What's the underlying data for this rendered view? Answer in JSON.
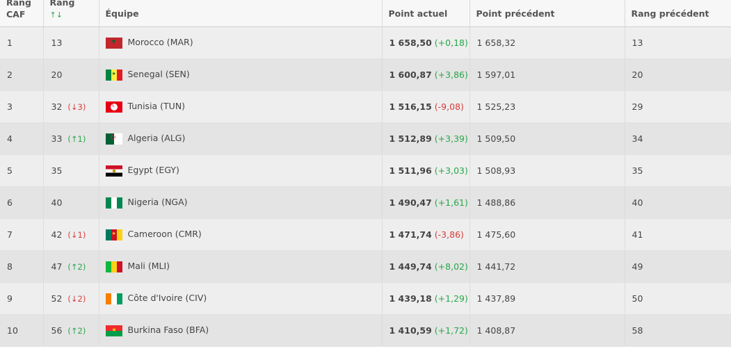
{
  "header": {
    "col_caf_line1": "Rang",
    "col_caf_line2": "CAF",
    "col_fifa_line1": "Rang",
    "col_fifa_sort": "↑↓",
    "col_team": "Équipe",
    "col_points": "Point actuel",
    "col_prev_points": "Point précédent",
    "col_prev_rank": "Rang précédent"
  },
  "rows": [
    {
      "caf": "1",
      "fifa": "13",
      "change": "",
      "change_dir": "",
      "flag": "flag-morocco",
      "team": "Morocco (MAR)",
      "points": "1 658,50",
      "points_diff": "(+0,18)",
      "diff_dir": "pos",
      "prev_points": "1 658,32",
      "prev_rank": "13"
    },
    {
      "caf": "2",
      "fifa": "20",
      "change": "",
      "change_dir": "",
      "flag": "flag-senegal",
      "team": "Senegal (SEN)",
      "points": "1 600,87",
      "points_diff": "(+3,86)",
      "diff_dir": "pos",
      "prev_points": "1 597,01",
      "prev_rank": "20"
    },
    {
      "caf": "3",
      "fifa": "32",
      "change": "(↓3)",
      "change_dir": "down",
      "flag": "flag-tunisia",
      "team": "Tunisia (TUN)",
      "points": "1 516,15",
      "points_diff": "(-9,08)",
      "diff_dir": "neg",
      "prev_points": "1 525,23",
      "prev_rank": "29"
    },
    {
      "caf": "4",
      "fifa": "33",
      "change": "(↑1)",
      "change_dir": "up",
      "flag": "flag-algeria",
      "team": "Algeria (ALG)",
      "points": "1 512,89",
      "points_diff": "(+3,39)",
      "diff_dir": "pos",
      "prev_points": "1 509,50",
      "prev_rank": "34"
    },
    {
      "caf": "5",
      "fifa": "35",
      "change": "",
      "change_dir": "",
      "flag": "flag-egypt",
      "team": "Egypt (EGY)",
      "points": "1 511,96",
      "points_diff": "(+3,03)",
      "diff_dir": "pos",
      "prev_points": "1 508,93",
      "prev_rank": "35"
    },
    {
      "caf": "6",
      "fifa": "40",
      "change": "",
      "change_dir": "",
      "flag": "flag-nigeria",
      "team": "Nigeria (NGA)",
      "points": "1 490,47",
      "points_diff": "(+1,61)",
      "diff_dir": "pos",
      "prev_points": "1 488,86",
      "prev_rank": "40"
    },
    {
      "caf": "7",
      "fifa": "42",
      "change": "(↓1)",
      "change_dir": "down",
      "flag": "flag-cameroon",
      "team": "Cameroon (CMR)",
      "points": "1 471,74",
      "points_diff": "(-3,86)",
      "diff_dir": "neg",
      "prev_points": "1 475,60",
      "prev_rank": "41"
    },
    {
      "caf": "8",
      "fifa": "47",
      "change": "(↑2)",
      "change_dir": "up",
      "flag": "flag-mali",
      "team": "Mali (MLI)",
      "points": "1 449,74",
      "points_diff": "(+8,02)",
      "diff_dir": "pos",
      "prev_points": "1 441,72",
      "prev_rank": "49"
    },
    {
      "caf": "9",
      "fifa": "52",
      "change": "(↓2)",
      "change_dir": "down",
      "flag": "flag-cote-divoire",
      "team": "Côte d'Ivoire (CIV)",
      "points": "1 439,18",
      "points_diff": "(+1,29)",
      "diff_dir": "pos",
      "prev_points": "1 437,89",
      "prev_rank": "50"
    },
    {
      "caf": "10",
      "fifa": "56",
      "change": "(↑2)",
      "change_dir": "up",
      "flag": "flag-burkina-faso",
      "team": "Burkina Faso (BFA)",
      "points": "1 410,59",
      "points_diff": "(+1,72)",
      "diff_dir": "pos",
      "prev_points": "1 408,87",
      "prev_rank": "58"
    }
  ],
  "colors": {
    "up": "#27a64a",
    "down": "#d93a3a",
    "row_odd": "#eeeeee",
    "row_even": "#e4e4e4"
  }
}
